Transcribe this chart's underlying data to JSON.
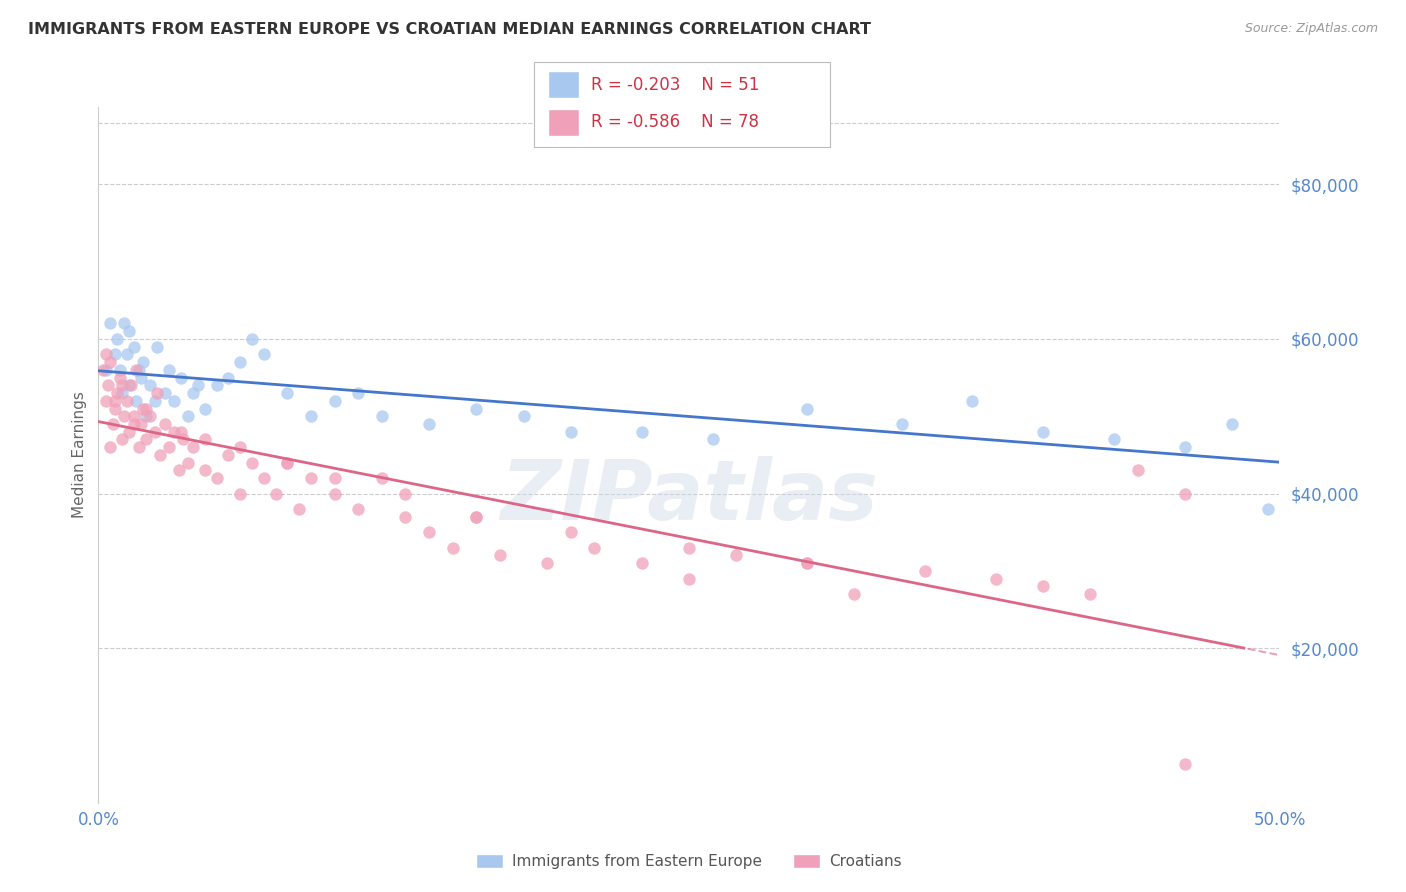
{
  "title": "IMMIGRANTS FROM EASTERN EUROPE VS CROATIAN MEDIAN EARNINGS CORRELATION CHART",
  "source": "Source: ZipAtlas.com",
  "ylabel": "Median Earnings",
  "xlim": [
    0.0,
    0.5
  ],
  "ylim": [
    0,
    90000
  ],
  "ytick_vals": [
    20000,
    40000,
    60000,
    80000
  ],
  "ytick_labels": [
    "$20,000",
    "$40,000",
    "$60,000",
    "$80,000"
  ],
  "xticks": [
    0.0,
    0.1,
    0.2,
    0.3,
    0.4,
    0.5
  ],
  "xtick_labels": [
    "0.0%",
    "",
    "",
    "",
    "",
    "50.0%"
  ],
  "legend_blue_r": "R = -0.203",
  "legend_blue_n": "N = 51",
  "legend_pink_r": "R = -0.586",
  "legend_pink_n": "N = 78",
  "blue_color": "#A8C8F0",
  "pink_color": "#F0A0B8",
  "blue_line_color": "#4477CC",
  "pink_line_color": "#DD6688",
  "watermark": "ZIPatlas",
  "blue_points_x": [
    0.003,
    0.005,
    0.007,
    0.008,
    0.009,
    0.01,
    0.011,
    0.012,
    0.013,
    0.015,
    0.016,
    0.018,
    0.019,
    0.02,
    0.022,
    0.025,
    0.028,
    0.03,
    0.032,
    0.035,
    0.038,
    0.04,
    0.045,
    0.05,
    0.055,
    0.06,
    0.07,
    0.08,
    0.09,
    0.1,
    0.12,
    0.14,
    0.16,
    0.18,
    0.2,
    0.23,
    0.26,
    0.3,
    0.34,
    0.37,
    0.4,
    0.43,
    0.46,
    0.48,
    0.495,
    0.013,
    0.017,
    0.024,
    0.042,
    0.065,
    0.11
  ],
  "blue_points_y": [
    56000,
    62000,
    58000,
    60000,
    56000,
    53000,
    62000,
    58000,
    54000,
    59000,
    52000,
    55000,
    57000,
    50000,
    54000,
    59000,
    53000,
    56000,
    52000,
    55000,
    50000,
    53000,
    51000,
    54000,
    55000,
    57000,
    58000,
    53000,
    50000,
    52000,
    50000,
    49000,
    51000,
    50000,
    48000,
    48000,
    47000,
    51000,
    49000,
    52000,
    48000,
    47000,
    46000,
    49000,
    38000,
    61000,
    56000,
    52000,
    54000,
    60000,
    53000
  ],
  "pink_points_x": [
    0.002,
    0.003,
    0.004,
    0.005,
    0.006,
    0.007,
    0.008,
    0.009,
    0.01,
    0.011,
    0.012,
    0.013,
    0.014,
    0.015,
    0.016,
    0.017,
    0.018,
    0.019,
    0.02,
    0.022,
    0.024,
    0.026,
    0.028,
    0.03,
    0.032,
    0.034,
    0.036,
    0.038,
    0.04,
    0.045,
    0.05,
    0.055,
    0.06,
    0.065,
    0.07,
    0.075,
    0.08,
    0.085,
    0.09,
    0.1,
    0.11,
    0.12,
    0.13,
    0.14,
    0.15,
    0.16,
    0.17,
    0.19,
    0.21,
    0.23,
    0.25,
    0.27,
    0.3,
    0.32,
    0.35,
    0.38,
    0.4,
    0.42,
    0.44,
    0.46,
    0.003,
    0.005,
    0.007,
    0.01,
    0.015,
    0.02,
    0.025,
    0.035,
    0.045,
    0.06,
    0.08,
    0.1,
    0.13,
    0.16,
    0.2,
    0.25,
    0.3,
    0.46
  ],
  "pink_points_y": [
    56000,
    52000,
    54000,
    57000,
    49000,
    51000,
    53000,
    55000,
    47000,
    50000,
    52000,
    48000,
    54000,
    50000,
    56000,
    46000,
    49000,
    51000,
    47000,
    50000,
    48000,
    45000,
    49000,
    46000,
    48000,
    43000,
    47000,
    44000,
    46000,
    43000,
    42000,
    45000,
    40000,
    44000,
    42000,
    40000,
    44000,
    38000,
    42000,
    40000,
    38000,
    42000,
    37000,
    35000,
    33000,
    37000,
    32000,
    31000,
    33000,
    31000,
    29000,
    32000,
    31000,
    27000,
    30000,
    29000,
    28000,
    27000,
    43000,
    40000,
    58000,
    46000,
    52000,
    54000,
    49000,
    51000,
    53000,
    48000,
    47000,
    46000,
    44000,
    42000,
    40000,
    37000,
    35000,
    33000,
    31000,
    5000
  ],
  "background_color": "#ffffff",
  "grid_color": "#cccccc",
  "tick_label_color": "#5588cc",
  "title_color": "#333333",
  "ylabel_color": "#666666",
  "source_color": "#999999"
}
